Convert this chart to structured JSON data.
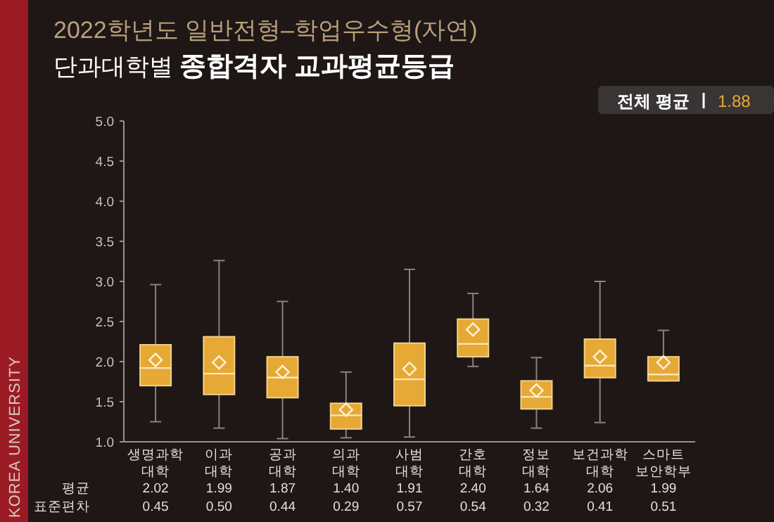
{
  "chart_data": {
    "type": "box",
    "title": "2022학년도 일반전형–학업우수형(자연)",
    "subtitle": "단과대학별 종합격자 교과평균등급",
    "categories": [
      "생명과학\n대학",
      "이과\n대학",
      "공과\n대학",
      "의과\n대학",
      "사범\n대학",
      "간호\n대학",
      "정보\n대학",
      "보건과학\n대학",
      "스마트\n보안학부"
    ],
    "color": "#e6a936",
    "boxes": [
      {
        "low": 1.25,
        "q1": 1.7,
        "median": 1.92,
        "q3": 2.21,
        "high": 2.96,
        "mean": 2.02
      },
      {
        "low": 1.17,
        "q1": 1.59,
        "median": 1.85,
        "q3": 2.31,
        "high": 3.26,
        "mean": 1.99
      },
      {
        "low": 1.04,
        "q1": 1.55,
        "median": 1.8,
        "q3": 2.06,
        "high": 2.75,
        "mean": 1.87
      },
      {
        "low": 1.05,
        "q1": 1.16,
        "median": 1.33,
        "q3": 1.48,
        "high": 1.87,
        "mean": 1.4
      },
      {
        "low": 1.06,
        "q1": 1.45,
        "median": 1.78,
        "q3": 2.23,
        "high": 3.15,
        "mean": 1.91
      },
      {
        "low": 1.94,
        "q1": 2.06,
        "median": 2.22,
        "q3": 2.53,
        "high": 2.85,
        "mean": 2.4
      },
      {
        "low": 1.17,
        "q1": 1.41,
        "median": 1.56,
        "q3": 1.76,
        "high": 2.05,
        "mean": 1.64
      },
      {
        "low": 1.24,
        "q1": 1.8,
        "median": 1.95,
        "q3": 2.28,
        "high": 3.0,
        "mean": 2.06
      },
      {
        "low": 1.76,
        "q1": 1.76,
        "median": 1.84,
        "q3": 2.06,
        "high": 2.39,
        "mean": 1.99
      }
    ],
    "value_labels": [
      "2.02",
      "1.99",
      "1.87",
      "1.40",
      "1.91",
      "2.40",
      "1.64",
      "2.06",
      "1.99"
    ],
    "marker": "diamond",
    "ylim": [
      1,
      5
    ],
    "yticks": [
      {
        "value": 1,
        "label": "1.0"
      },
      {
        "value": 1.5,
        "label": "1.5"
      },
      {
        "value": 2,
        "label": "2.0"
      },
      {
        "value": 2.5,
        "label": "2.5"
      },
      {
        "value": 3,
        "label": "3.0"
      },
      {
        "value": 3.5,
        "label": "3.5"
      },
      {
        "value": 4,
        "label": "4.0"
      },
      {
        "value": 4.5,
        "label": "4.5"
      },
      {
        "value": 5,
        "label": "5.0"
      }
    ],
    "grid": false,
    "annotations": [
      "전체 평균",
      "1.88",
      "평균",
      "표준편차",
      "0.45",
      "0.50",
      "0.44",
      "0.29",
      "0.57",
      "0.54",
      "0.32",
      "0.41",
      "0.51",
      "KOREA UNIVERSITY"
    ]
  }
}
